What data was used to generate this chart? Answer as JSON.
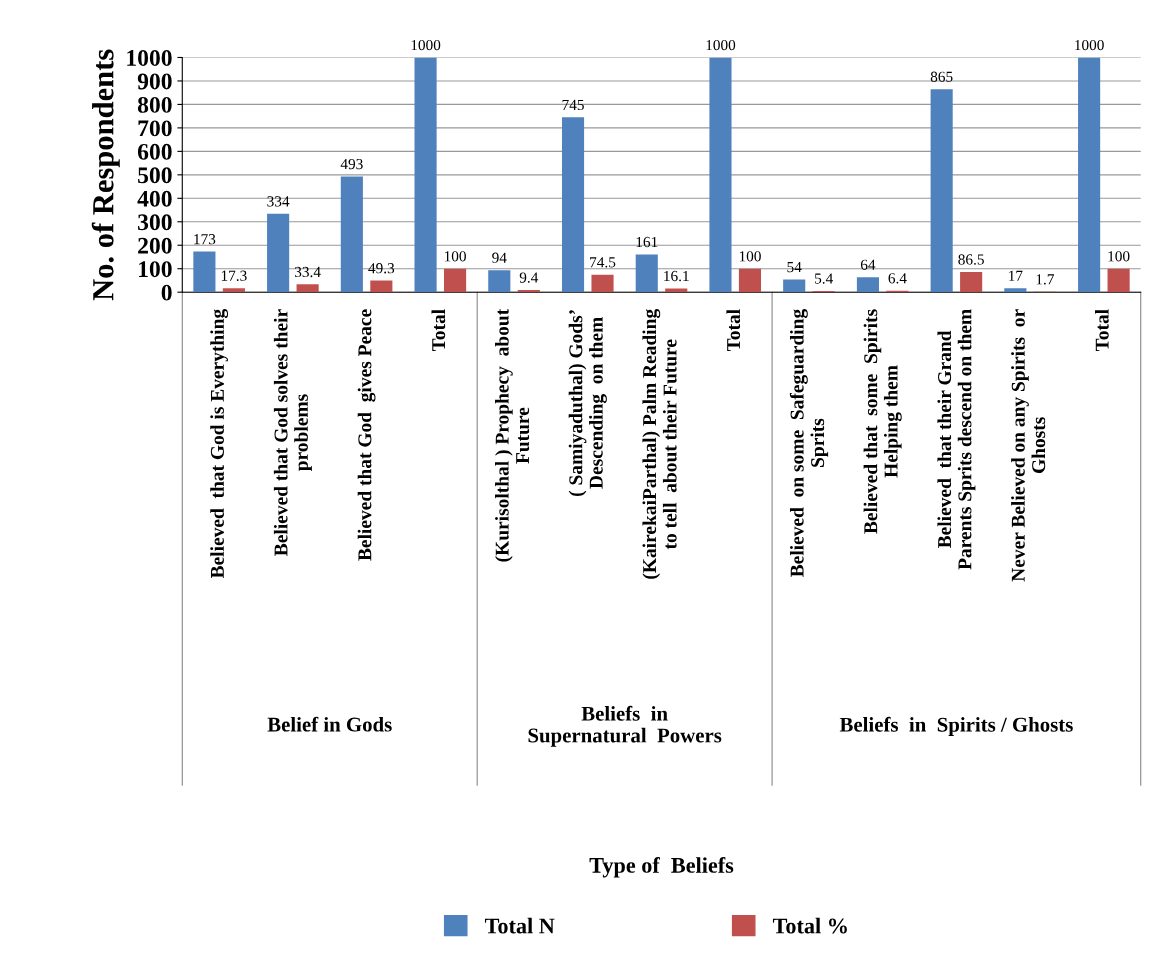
{
  "chart_data": {
    "type": "bar",
    "categories": [
      "Believed  that God is Everything",
      "Believed that God solves their\nproblems",
      "Believed that God  gives Peace",
      "Total",
      "(Kurisolthal ) Prophecy  about\nFuture",
      "( Samiyaduthal) Gods’\nDescending  on them",
      "(KairekaiParthal) Palm Reading\nto tell  about their Future",
      "Total",
      "Believed  on some  Safeguarding\nSprits",
      "Believed that  some  Spirits\nHelping them",
      "Believed  that their Grand\nParents Sprits descend on them",
      "Never Believed on any Spirits  or\nGhosts",
      "Total"
    ],
    "series": [
      {
        "name": "Total N",
        "color": "#4f81bd",
        "values": [
          173,
          334,
          493,
          1000,
          94,
          745,
          161,
          1000,
          54,
          64,
          865,
          17,
          1000
        ]
      },
      {
        "name": "Total %",
        "color": "#c0504d",
        "values": [
          17.3,
          33.4,
          49.3,
          100,
          9.4,
          74.5,
          16.1,
          100,
          5.4,
          6.4,
          86.5,
          1.7,
          100
        ]
      }
    ],
    "ylabel": "No. of Respondents",
    "annotations": [
      "Belief in Gods",
      "Beliefs  in\nSupernatural  Powers",
      "Beliefs  in  Spirits / Ghosts",
      "Type of  Beliefs"
    ],
    "ylim": [
      0,
      1000
    ],
    "yticks": [
      0,
      100,
      200,
      300,
      400,
      500,
      600,
      700,
      800,
      900,
      1000
    ],
    "grid": "y",
    "legend": "bottom",
    "data_labels": true
  }
}
